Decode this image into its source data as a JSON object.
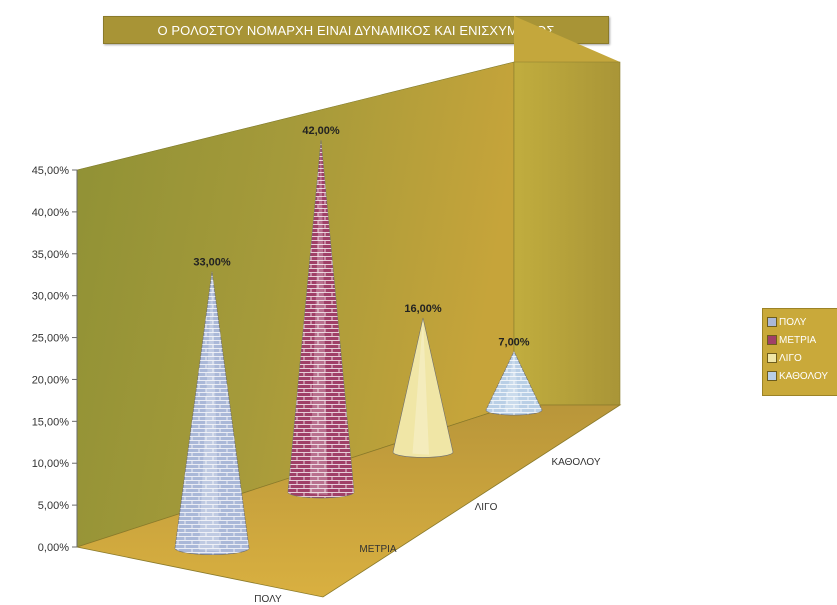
{
  "title": "Ο ΡΟΛΟΣΤΟΥ ΝΟΜΑΡΧΗ ΕΙΝΑΙ ΔΥΝΑΜΙΚΟΣ ΚΑΙ ΕΝΙΣΧΥΜΕΝΟΣ",
  "colors": {
    "title_bg": "#a89436",
    "back_wall": "#9e9a3a",
    "floor": "#c9a23a",
    "side_wall": "#b8a33c",
    "legend_bg": "#c9a93a"
  },
  "chart_data": {
    "type": "bar",
    "shape": "cone-3d",
    "title": "Ο ΡΟΛΟΣΤΟΥ ΝΟΜΑΡΧΗ ΕΙΝΑΙ ΔΥΝΑΜΙΚΟΣ ΚΑΙ ΕΝΙΣΧΥΜΕΝΟΣ",
    "categories": [
      "ΠΟΛΥ",
      "ΜΕΤΡΙΑ",
      "ΛΙΓΟ",
      "ΚΑΘΟΛΟΥ"
    ],
    "values": [
      33,
      42,
      16,
      7
    ],
    "data_labels": [
      "33,00%",
      "42,00%",
      "16,00%",
      "7,00%"
    ],
    "point_colors": [
      "#aab8d8",
      "#a04068",
      "#f0e6a6",
      "#b9cfe6"
    ],
    "ylim": [
      0,
      45
    ],
    "yticks": [
      "0,00%",
      "5,00%",
      "10,00%",
      "15,00%",
      "20,00%",
      "25,00%",
      "30,00%",
      "35,00%",
      "40,00%",
      "45,00%"
    ],
    "legend": {
      "position": "right",
      "entries": [
        "ΠΟΛΥ",
        "ΜΕΤΡΙΑ",
        "ΛΙΓΟ",
        "ΚΑΘΟΛΟΥ"
      ]
    },
    "grid": false
  }
}
